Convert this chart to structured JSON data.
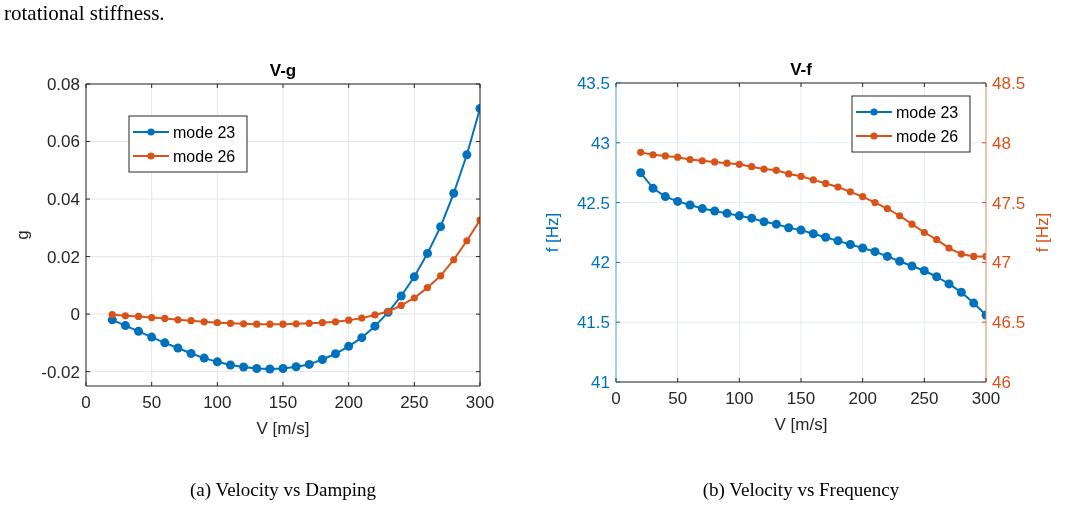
{
  "chart_data": [
    {
      "type": "line",
      "title": "V-g",
      "xlabel": "V [m/s]",
      "ylabel": "g",
      "annotations": [
        "rotational stiffness.",
        "(a) Velocity vs Damping"
      ],
      "x": [
        20,
        30,
        40,
        50,
        60,
        70,
        80,
        90,
        100,
        110,
        120,
        130,
        140,
        150,
        160,
        170,
        180,
        190,
        200,
        210,
        220,
        230,
        240,
        250,
        260,
        270,
        280,
        290,
        300
      ],
      "series": [
        {
          "name": "mode 23",
          "color": "#0072bd",
          "values": [
            -0.002,
            -0.004,
            -0.006,
            -0.008,
            -0.01,
            -0.0118,
            -0.0137,
            -0.0153,
            -0.0166,
            -0.0177,
            -0.0184,
            -0.0189,
            -0.0191,
            -0.0189,
            -0.0183,
            -0.0175,
            -0.0158,
            -0.0138,
            -0.0112,
            -0.0082,
            -0.0042,
            0.0006,
            0.0063,
            0.013,
            0.0211,
            0.0304,
            0.042,
            0.0554,
            0.0715
          ]
        },
        {
          "name": "mode 26",
          "color": "#d95319",
          "values": [
            -0.0002,
            -0.0006,
            -0.0008,
            -0.0012,
            -0.0015,
            -0.002,
            -0.0023,
            -0.0027,
            -0.003,
            -0.0032,
            -0.0034,
            -0.0035,
            -0.0035,
            -0.0035,
            -0.0034,
            -0.0032,
            -0.003,
            -0.0027,
            -0.0021,
            -0.0014,
            -0.0003,
            0.0009,
            0.003,
            0.0056,
            0.0092,
            0.0133,
            0.0189,
            0.0255,
            0.0327
          ]
        }
      ],
      "xlim": [
        0,
        300
      ],
      "xticks": [
        0,
        50,
        100,
        150,
        200,
        250,
        300
      ],
      "ylim": [
        -0.025,
        0.08
      ],
      "yticks": [
        -0.02,
        0,
        0.02,
        0.04,
        0.06,
        0.08
      ],
      "grid": true,
      "legend": "top left",
      "marker": "circle",
      "line_style": "solid"
    },
    {
      "type": "line",
      "title": "V-f",
      "xlabel": "V [m/s]",
      "ylabel": "f [Hz]",
      "y2label": "f [Hz]",
      "annotations": [
        "(b) Velocity vs Frequency"
      ],
      "x": [
        20,
        30,
        40,
        50,
        60,
        70,
        80,
        90,
        100,
        110,
        120,
        130,
        140,
        150,
        160,
        170,
        180,
        190,
        200,
        210,
        220,
        230,
        240,
        250,
        260,
        270,
        280,
        290,
        300
      ],
      "series": [
        {
          "name": "mode 23",
          "color": "#0072bd",
          "values": [
            42.75,
            42.62,
            42.55,
            42.51,
            42.48,
            42.45,
            42.43,
            42.41,
            42.39,
            42.37,
            42.34,
            42.32,
            42.29,
            42.27,
            42.24,
            42.21,
            42.18,
            42.15,
            42.12,
            42.09,
            42.05,
            42.01,
            41.97,
            41.93,
            41.88,
            41.82,
            41.75,
            41.66,
            41.56
          ]
        },
        {
          "name": "mode 26",
          "color": "#d95319",
          "axis": "y2",
          "values": [
            47.92,
            47.9,
            47.89,
            47.88,
            47.86,
            47.85,
            47.84,
            47.83,
            47.82,
            47.8,
            47.78,
            47.77,
            47.74,
            47.72,
            47.69,
            47.66,
            47.63,
            47.59,
            47.55,
            47.5,
            47.45,
            47.39,
            47.32,
            47.25,
            47.19,
            47.12,
            47.07,
            47.05,
            47.05
          ]
        }
      ],
      "xlim": [
        0,
        300
      ],
      "xticks": [
        0,
        50,
        100,
        150,
        200,
        250,
        300
      ],
      "ylim": [
        41,
        43.5
      ],
      "yticks": [
        41,
        41.5,
        42,
        42.5,
        43,
        43.5
      ],
      "y2lim": [
        46,
        48.5
      ],
      "y2ticks": [
        46,
        46.5,
        47,
        47.5,
        48,
        48.5
      ],
      "grid": true,
      "legend": "top right",
      "marker": "circle",
      "line_style": "solid"
    }
  ]
}
